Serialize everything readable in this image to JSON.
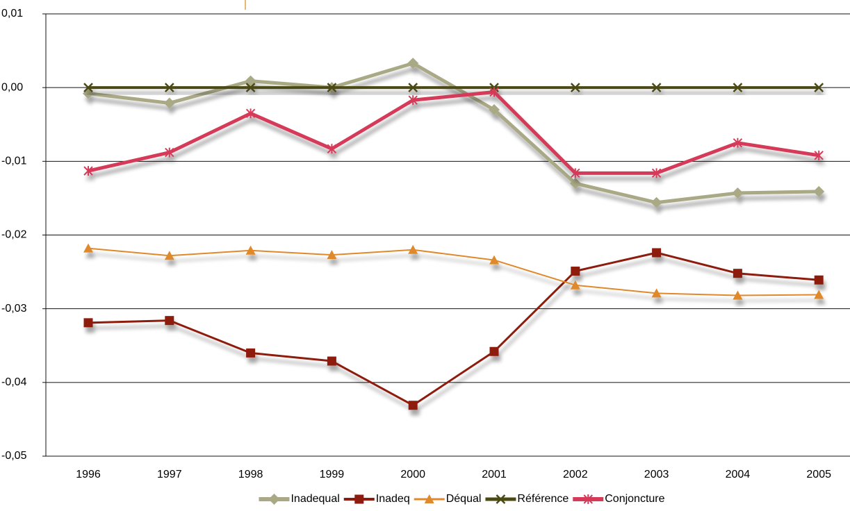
{
  "chart_data": {
    "type": "line",
    "categories": [
      "1996",
      "1997",
      "1998",
      "1999",
      "2000",
      "2001",
      "2002",
      "2003",
      "2004",
      "2005"
    ],
    "ylim": [
      -0.05,
      0.01
    ],
    "yticks": [
      {
        "value": 0.01,
        "label": "0,01"
      },
      {
        "value": 0,
        "label": "0,00"
      },
      {
        "value": -0.01,
        "label": "-0,01"
      },
      {
        "value": -0.02,
        "label": "-0,02"
      },
      {
        "value": -0.03,
        "label": "-0,03"
      },
      {
        "value": -0.04,
        "label": "-0,04"
      },
      {
        "value": -0.05,
        "label": "-0,05"
      }
    ],
    "grid": true,
    "legend": "bottom",
    "series": [
      {
        "name": "Inadequal",
        "color": "#a9a986",
        "marker": "diamond",
        "values": [
          -0.0008,
          -0.0021,
          0.0009,
          0.0,
          0.0033,
          -0.003,
          -0.013,
          -0.0156,
          -0.0143,
          -0.0141
        ]
      },
      {
        "name": "Inadeq",
        "color": "#8e1b0f",
        "marker": "square",
        "values": [
          -0.0319,
          -0.0316,
          -0.036,
          -0.0371,
          -0.0431,
          -0.0358,
          -0.0249,
          -0.0224,
          -0.0252,
          -0.0261
        ]
      },
      {
        "name": "Déqual",
        "color": "#e0892c",
        "marker": "triangle",
        "values": [
          -0.0218,
          -0.0228,
          -0.0221,
          -0.0227,
          -0.022,
          -0.0234,
          -0.0268,
          -0.0279,
          -0.0282,
          -0.0281
        ]
      },
      {
        "name": "Référence",
        "color": "#4b4a12",
        "marker": "x",
        "values": [
          0,
          0,
          0,
          0,
          0,
          0,
          0,
          0,
          0,
          0
        ]
      },
      {
        "name": "Conjoncture",
        "color": "#d53a59",
        "marker": "asterisk",
        "values": [
          -0.0113,
          -0.0088,
          -0.0035,
          -0.0083,
          -0.0017,
          -0.0006,
          -0.0116,
          -0.0116,
          -0.0075,
          -0.0092
        ]
      }
    ]
  }
}
